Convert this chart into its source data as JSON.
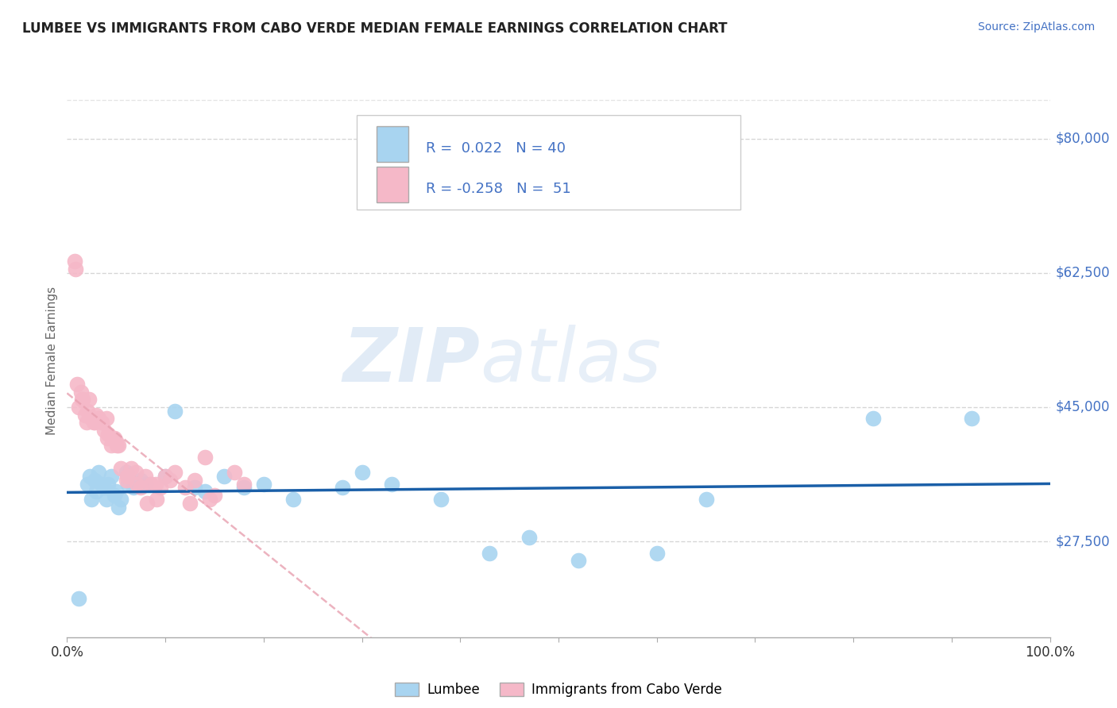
{
  "title": "LUMBEE VS IMMIGRANTS FROM CABO VERDE MEDIAN FEMALE EARNINGS CORRELATION CHART",
  "source_text": "Source: ZipAtlas.com",
  "ylabel": "Median Female Earnings",
  "xlim": [
    0,
    100
  ],
  "ylim": [
    15000,
    87000
  ],
  "yticks": [
    27500,
    45000,
    62500,
    80000
  ],
  "ytick_labels": [
    "$27,500",
    "$45,000",
    "$62,500",
    "$80,000"
  ],
  "xticks": [
    0,
    10,
    20,
    30,
    40,
    50,
    60,
    70,
    80,
    90,
    100
  ],
  "xtick_labels": [
    "0.0%",
    "",
    "",
    "",
    "",
    "",
    "",
    "",
    "",
    "",
    "100.0%"
  ],
  "lumbee_color": "#a8d4f0",
  "cabo_verde_color": "#f5b8c8",
  "lumbee_line_color": "#1a5fa8",
  "cabo_verde_line_color": "#e8a0b0",
  "R_lumbee": "0.022",
  "N_lumbee": "40",
  "R_cabo": "-0.258",
  "N_cabo": "51",
  "watermark_zip": "ZIP",
  "watermark_atlas": "atlas",
  "title_color": "#222222",
  "source_color": "#4472c4",
  "axis_label_color": "#666666",
  "ytick_color": "#4472c4",
  "background_color": "#ffffff",
  "grid_color": "#cccccc",
  "legend_text_color": "#4472c4",
  "lumbee_x": [
    1.2,
    2.1,
    2.3,
    2.5,
    2.8,
    3.0,
    3.2,
    3.5,
    3.8,
    4.0,
    4.2,
    4.5,
    4.8,
    5.0,
    5.2,
    5.5,
    6.0,
    6.2,
    6.8,
    7.5,
    8.0,
    10.0,
    11.0,
    13.0,
    14.0,
    16.0,
    18.0,
    20.0,
    23.0,
    28.0,
    30.0,
    33.0,
    38.0,
    43.0,
    47.0,
    52.0,
    60.0,
    65.0,
    82.0,
    92.0
  ],
  "lumbee_y": [
    20000,
    35000,
    36000,
    33000,
    35500,
    34000,
    36500,
    35000,
    34500,
    33000,
    35000,
    36000,
    33500,
    34000,
    32000,
    33000,
    36500,
    35000,
    34500,
    35500,
    35000,
    36000,
    44500,
    34500,
    34000,
    36000,
    34500,
    35000,
    33000,
    34500,
    36500,
    35000,
    33000,
    26000,
    28000,
    25000,
    26000,
    33000,
    43500,
    43500
  ],
  "cabo_x": [
    0.8,
    1.0,
    1.5,
    1.8,
    2.0,
    2.2,
    2.5,
    2.8,
    3.0,
    3.2,
    3.5,
    3.8,
    4.0,
    4.2,
    4.5,
    4.8,
    5.0,
    5.2,
    5.5,
    6.0,
    6.5,
    7.0,
    7.5,
    8.0,
    8.5,
    9.0,
    9.5,
    10.0,
    11.0,
    12.0,
    13.0,
    14.0,
    15.0,
    17.0,
    18.0,
    1.2,
    1.4,
    1.6,
    2.1,
    2.7,
    3.1,
    4.1,
    5.1,
    6.1,
    7.1,
    8.1,
    9.1,
    10.5,
    12.5,
    14.5,
    0.9
  ],
  "cabo_y": [
    64000,
    48000,
    46000,
    44000,
    43000,
    46000,
    43500,
    43000,
    44000,
    43500,
    43000,
    42000,
    43500,
    41500,
    40000,
    41000,
    40500,
    40000,
    37000,
    35500,
    37000,
    36500,
    34500,
    36000,
    35000,
    35000,
    34500,
    36000,
    36500,
    34500,
    35500,
    38500,
    33500,
    36500,
    35000,
    45000,
    47000,
    46000,
    44500,
    43000,
    43500,
    41000,
    40000,
    36000,
    35000,
    32500,
    33000,
    35500,
    32500,
    33000,
    63000
  ]
}
